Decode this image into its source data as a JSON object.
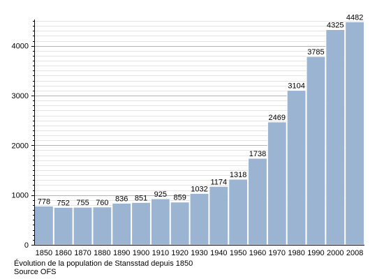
{
  "chart_data": {
    "type": "bar",
    "title": "",
    "xlabel": "",
    "ylabel": "",
    "categories": [
      "1850",
      "1860",
      "1870",
      "1880",
      "1890",
      "1900",
      "1910",
      "1920",
      "1930",
      "1940",
      "1950",
      "1960",
      "1970",
      "1980",
      "1990",
      "2000",
      "2008"
    ],
    "values": [
      778,
      752,
      755,
      760,
      836,
      851,
      925,
      859,
      1032,
      1174,
      1318,
      1738,
      2469,
      3104,
      3785,
      4325,
      4482
    ],
    "ylim": [
      0,
      4500
    ],
    "y_ticks": [
      0,
      1000,
      2000,
      3000,
      4000
    ],
    "grid": true,
    "bar_color": "#9bb4d2",
    "bar_edge_color": "#ffffff",
    "grid_color": "#c8c8c8"
  },
  "caption": {
    "line1": "Évolution de la population de Stansstad depuis 1850",
    "line2": "Source OFS"
  }
}
